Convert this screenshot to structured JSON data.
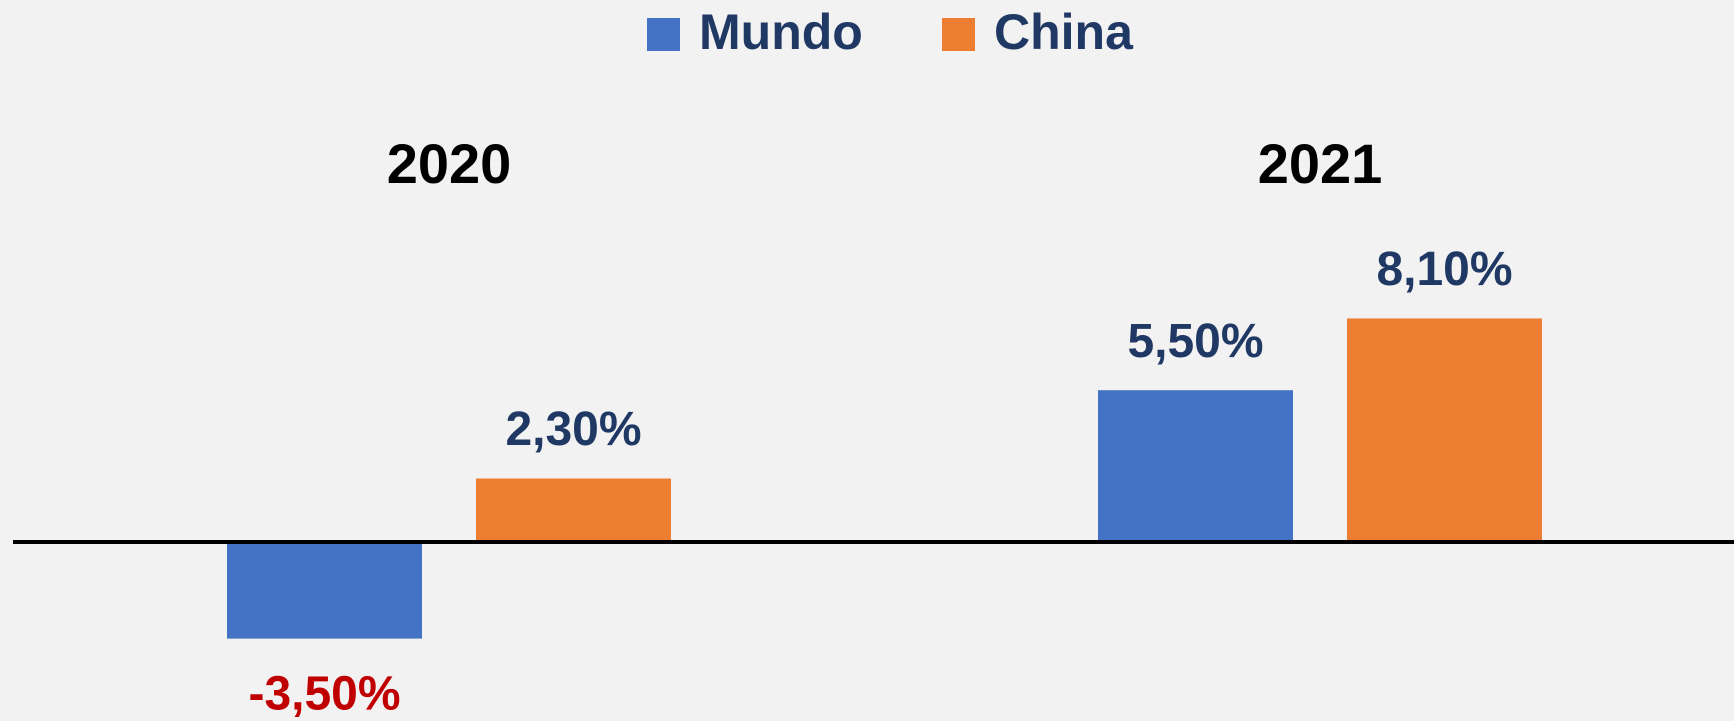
{
  "chart_data": {
    "type": "bar",
    "categories": [
      "2020",
      "2021"
    ],
    "series": [
      {
        "name": "Mundo",
        "color": "#4472c4",
        "values": [
          -3.5,
          5.5
        ],
        "value_labels": [
          "-3,50%",
          "5,50%"
        ]
      },
      {
        "name": "China",
        "color": "#ed7d31",
        "values": [
          2.3,
          8.1
        ],
        "value_labels": [
          "2,30%",
          "8,10%"
        ]
      }
    ],
    "legend": "top",
    "label_color": "#203864",
    "negative_label_color": "#c00000"
  }
}
